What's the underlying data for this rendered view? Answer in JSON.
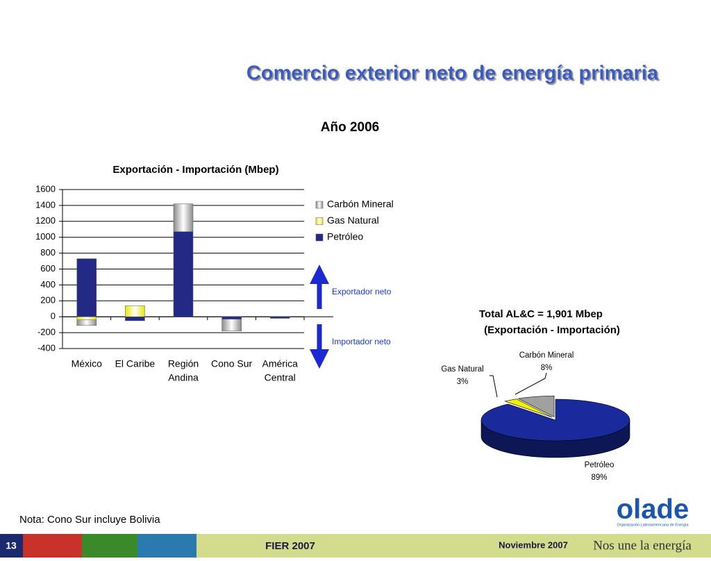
{
  "slide": {
    "title": "Comercio exterior neto de energía primaria",
    "subtitle": "Año 2006",
    "annotations": [
      "Exportador neto",
      "Importador neto"
    ],
    "note": "Nota: Cono Sur incluye Bolivia",
    "footer": {
      "page": "13",
      "event": "FIER 2007",
      "date": "Noviembre 2007",
      "slogan": "Nos une la energía",
      "logo": "olade",
      "logo_subtitle": "Organización Latinoamericana de Energía"
    }
  },
  "chart_data": [
    {
      "type": "bar",
      "stacked": true,
      "title": "Exportación - Importación (Mbep)",
      "categories": [
        "México",
        "El Caribe",
        "Región Andina",
        "Cono Sur",
        "América Central"
      ],
      "category_lines": [
        [
          "México"
        ],
        [
          "El Caribe"
        ],
        [
          "Región",
          "Andina"
        ],
        [
          "Cono Sur"
        ],
        [
          "América",
          "Central"
        ]
      ],
      "series": [
        {
          "name": "Petróleo",
          "color": "#232a86",
          "values": [
            730,
            -50,
            1070,
            -30,
            -20
          ]
        },
        {
          "name": "Gas Natural",
          "color": "#e6e600",
          "values": [
            -40,
            140,
            0,
            0,
            0
          ]
        },
        {
          "name": "Carbón Mineral",
          "color": "#8a8a8a",
          "values": [
            -70,
            0,
            350,
            -150,
            0
          ]
        }
      ],
      "ylim": [
        -400,
        1600
      ],
      "yticks": [
        -400,
        -200,
        0,
        200,
        400,
        600,
        800,
        1000,
        1200,
        1400,
        1600
      ],
      "grid": true,
      "legend": "right"
    },
    {
      "type": "pie",
      "title": [
        "Total  AL&C = 1,901 Mbep",
        "(Exportación - Importación)"
      ],
      "categories": [
        "Petróleo",
        "Gas Natural",
        "Carbón Mineral"
      ],
      "values": [
        89,
        3,
        8
      ],
      "value_labels": [
        "89%",
        "3%",
        "8%"
      ],
      "colors": [
        "#1a2a9c",
        "#f0f000",
        "#a0a0a0"
      ],
      "3d": true
    }
  ]
}
